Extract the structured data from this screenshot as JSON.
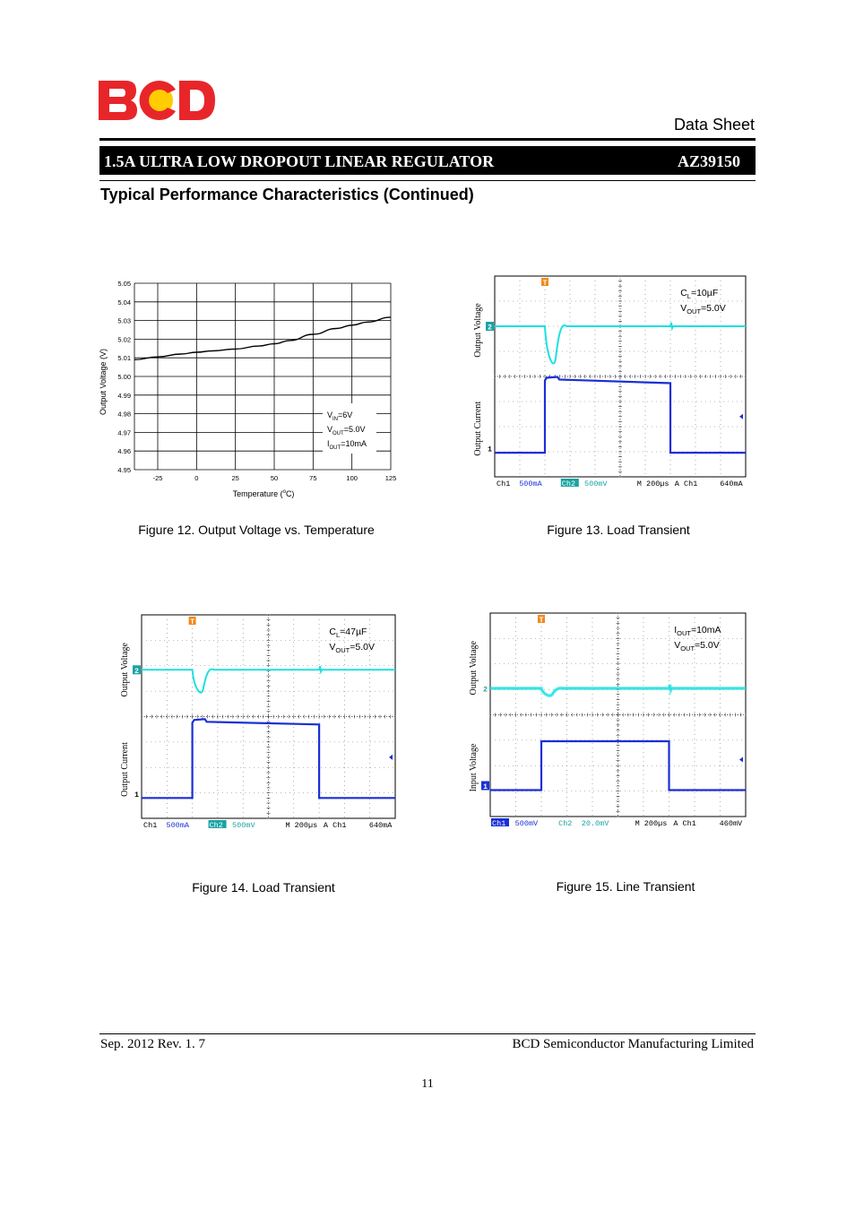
{
  "header": {
    "doc_type": "Data Sheet",
    "title": "1.5A ULTRA LOW DROPOUT LINEAR REGULATOR",
    "part_number": "AZ39150",
    "colors": {
      "logo_red": "#e8262a",
      "logo_yellow": "#ffcc00"
    }
  },
  "section_title": "Typical Performance Characteristics (Continued)",
  "figures": [
    {
      "caption": "Figure 12. Output Voltage vs. Temperature",
      "xlabel": "Temperature (",
      "xlabel_unit": "C)",
      "ylabel": "Output Voltage (V)",
      "x_ticks": [
        "-25",
        "0",
        "25",
        "50",
        "75",
        "100",
        "125"
      ],
      "y_ticks": [
        "4.95",
        "4.96",
        "4.97",
        "4.98",
        "4.99",
        "5.00",
        "5.01",
        "5.02",
        "5.03",
        "5.04",
        "5.05"
      ],
      "annotations": [
        {
          "main": "V",
          "sub": "IN",
          "rest": "=6V"
        },
        {
          "main": "V",
          "sub": "OUT",
          "rest": "=5.0V"
        },
        {
          "main": "I",
          "sub": "OUT",
          "rest": "=10mA"
        }
      ]
    },
    {
      "caption": "Figure 13. Load Transient",
      "upper_label": "Output Voltage",
      "lower_label": "Output Current",
      "annotations": [
        {
          "main": "C",
          "sub": "L",
          "rest": "=10µF"
        },
        {
          "main": "V",
          "sub": "OUT",
          "rest": "=5.0V"
        }
      ],
      "status": {
        "ch1": "Ch1",
        "ch1_scale": "500mA",
        "ch2": "Ch2",
        "ch2_scale": "500mV",
        "time": "M 200µs",
        "trigger": "A Ch1",
        "trigger_level": "640mA"
      },
      "markers": {
        "trigger": "T",
        "ch2": "2",
        "ch1": "1"
      }
    },
    {
      "caption": "Figure 14. Load Transient",
      "upper_label": "Output Voltage",
      "lower_label": "Output Current",
      "annotations": [
        {
          "main": "C",
          "sub": "L",
          "rest": "=47µF"
        },
        {
          "main": "V",
          "sub": "OUT",
          "rest": "=5.0V"
        }
      ],
      "status": {
        "ch1": "Ch1",
        "ch1_scale": "500mA",
        "ch2": "Ch2",
        "ch2_scale": "500mV",
        "time": "M 200µs",
        "trigger": "A Ch1",
        "trigger_level": "640mA"
      },
      "markers": {
        "trigger": "T",
        "ch2": "2",
        "ch1": "1"
      }
    },
    {
      "caption": "Figure 15. Line Transient",
      "upper_label": "Output Voltage",
      "lower_label": "Input Voltage",
      "annotations": [
        {
          "main": "I",
          "sub": "OUT",
          "rest": "=10mA"
        },
        {
          "main": "V",
          "sub": "OUT",
          "rest": "=5.0V"
        }
      ],
      "status": {
        "ch1": "Ch1",
        "ch1_scale": "500mV",
        "ch2": "Ch2",
        "ch2_scale": "20.0mV",
        "time": "M 200µs",
        "trigger": "A Ch1",
        "trigger_level": "460mV"
      },
      "markers": {
        "trigger": "T",
        "ch2": "2",
        "ch1": "1"
      }
    }
  ],
  "chart_data": [
    {
      "type": "line",
      "xlabel": "Temperature (°C)",
      "ylabel": "Output Voltage (V)",
      "xlim": [
        -40,
        125
      ],
      "ylim": [
        4.95,
        5.05
      ],
      "grid": true,
      "series": [
        {
          "x": [
            -40,
            -25,
            -10,
            0,
            10,
            25,
            40,
            50,
            60,
            75,
            90,
            100,
            110,
            125
          ],
          "values": [
            5.009,
            5.0105,
            5.012,
            5.013,
            5.0137,
            5.0147,
            5.0163,
            5.0175,
            5.0193,
            5.0226,
            5.0257,
            5.0275,
            5.0292,
            5.0318
          ]
        }
      ]
    }
  ],
  "footer": {
    "date_rev": "Sep. 2012  Rev. 1. 7",
    "company": "BCD Semiconductor Manufacturing Limited",
    "page": "11"
  }
}
